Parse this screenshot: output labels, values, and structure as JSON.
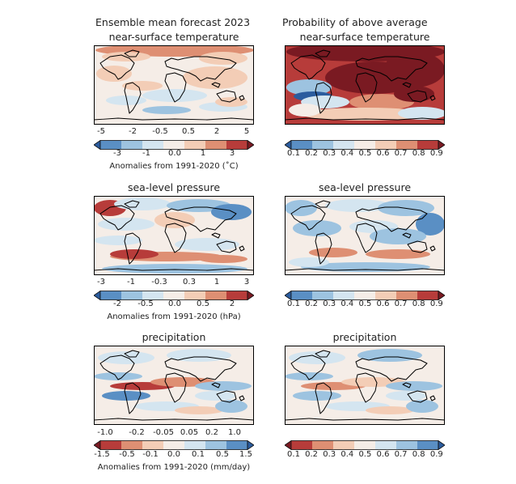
{
  "header": {
    "left_title": "Ensemble mean forecast 2023",
    "right_title": "Probability of above average"
  },
  "panels": [
    {
      "id": "temp-mean",
      "title": "near-surface temperature",
      "kind": "anomaly"
    },
    {
      "id": "temp-prob",
      "title": "near-surface temperature",
      "kind": "probability"
    },
    {
      "id": "slp-mean",
      "title": "sea-level pressure",
      "kind": "anomaly"
    },
    {
      "id": "slp-prob",
      "title": "sea-level pressure",
      "kind": "probability"
    },
    {
      "id": "precip-mean",
      "title": "precipitation",
      "kind": "anomaly"
    },
    {
      "id": "precip-prob",
      "title": "precipitation",
      "kind": "probability"
    }
  ],
  "colorbars": {
    "temp": {
      "top_ticks": [
        "-5",
        "-2",
        "-0.5",
        "0.5",
        "2",
        "5"
      ],
      "bottom_ticks": [
        "-3",
        "-1",
        "0.0",
        "1",
        "3"
      ],
      "label": "Anomalies from 1991-2020 (˚C)",
      "colors": [
        "#2b5c9e",
        "#5a8fc4",
        "#9dc3e0",
        "#d4e5f0",
        "#f5ede7",
        "#f3cdb6",
        "#de8f73",
        "#b73c3a",
        "#7a1a22"
      ]
    },
    "slp": {
      "top_ticks": [
        "-3",
        "-1",
        "-0.3",
        "0.3",
        "1",
        "3"
      ],
      "bottom_ticks": [
        "-2",
        "-0.5",
        "0.0",
        "0.5",
        "2"
      ],
      "label": "Anomalies from 1991-2020 (hPa)",
      "colors": [
        "#2b5c9e",
        "#5a8fc4",
        "#9dc3e0",
        "#d4e5f0",
        "#f5ede7",
        "#f3cdb6",
        "#de8f73",
        "#b73c3a",
        "#7a1a22"
      ]
    },
    "precip": {
      "top_ticks": [
        "-1.0",
        "-0.2",
        "-0.05",
        "0.05",
        "0.2",
        "1.0"
      ],
      "bottom_ticks": [
        "-1.5",
        "-0.5",
        "-0.1",
        "0.0",
        "0.1",
        "0.5",
        "1.5"
      ],
      "label": "Anomalies from 1991-2020 (mm/day)",
      "colors": [
        "#7a1a22",
        "#b73c3a",
        "#de8f73",
        "#f3cdb6",
        "#f5ede7",
        "#d4e5f0",
        "#9dc3e0",
        "#5a8fc4",
        "#2b5c9e"
      ]
    },
    "prob_warm": {
      "ticks": [
        "0.1",
        "0.2",
        "0.3",
        "0.4",
        "0.5",
        "0.6",
        "0.7",
        "0.8",
        "0.9"
      ],
      "colors": [
        "#2b5c9e",
        "#5a8fc4",
        "#9dc3e0",
        "#d4e5f0",
        "#f5ede7",
        "#f3cdb6",
        "#de8f73",
        "#b73c3a",
        "#7a1a22"
      ]
    },
    "prob_wet": {
      "ticks": [
        "0.1",
        "0.2",
        "0.3",
        "0.4",
        "0.5",
        "0.6",
        "0.7",
        "0.8",
        "0.9"
      ],
      "colors": [
        "#7a1a22",
        "#b73c3a",
        "#de8f73",
        "#f3cdb6",
        "#f5ede7",
        "#d4e5f0",
        "#9dc3e0",
        "#5a8fc4",
        "#2b5c9e"
      ]
    }
  }
}
